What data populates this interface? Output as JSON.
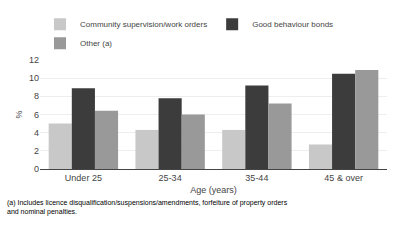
{
  "chart_data": {
    "type": "bar",
    "categories": [
      "Under 25",
      "25-34",
      "35-44",
      "45 & over"
    ],
    "series": [
      {
        "name": "Community supervision/work orders",
        "color": "#c8c8c8",
        "values": [
          5.0,
          4.3,
          4.3,
          2.7
        ]
      },
      {
        "name": "Good behaviour bonds",
        "color": "#3c3c3c",
        "values": [
          8.9,
          7.8,
          9.2,
          10.5
        ]
      },
      {
        "name": "Other (a)",
        "color": "#999999",
        "values": [
          6.4,
          6.0,
          7.2,
          10.9
        ]
      }
    ],
    "ylabel": "%",
    "xlabel": "Age (years)",
    "ylim": [
      0,
      12
    ],
    "yticks": [
      0,
      2,
      4,
      6,
      8,
      10,
      12
    ],
    "grid": true,
    "legend": "top",
    "annotations": [
      "(a) Includes licence disqualification/suspensions/amendments, forfeiture of property orders\nand nominal penalties."
    ]
  }
}
